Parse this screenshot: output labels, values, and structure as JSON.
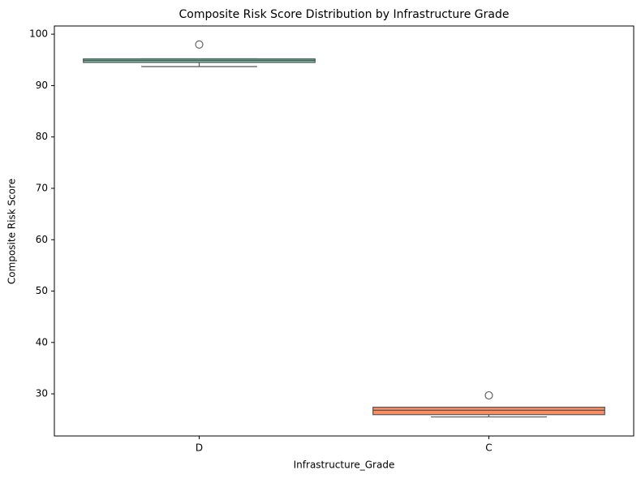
{
  "chart_data": {
    "type": "box",
    "title": "Composite Risk Score Distribution by Infrastructure Grade",
    "x_label": "Infrastructure_Grade",
    "y_label": "Composite Risk Score",
    "categories": [
      "D",
      "C"
    ],
    "boxes": [
      {
        "color": "#66c2a5",
        "whisker_low": 93.7,
        "q1": 94.5,
        "median": 94.9,
        "q3": 95.2,
        "whisker_high": 95.2,
        "outliers": [
          98
        ]
      },
      {
        "color": "#fc8d62",
        "whisker_low": 25.5,
        "q1": 25.95,
        "median": 26.8,
        "q3": 27.4,
        "whisker_high": 27.4,
        "outliers": [
          29.7
        ]
      }
    ],
    "ylim": [
      21.8,
      101.6
    ],
    "yticks": [
      30,
      40,
      50,
      60,
      70,
      80,
      90,
      100
    ],
    "grid": false
  }
}
